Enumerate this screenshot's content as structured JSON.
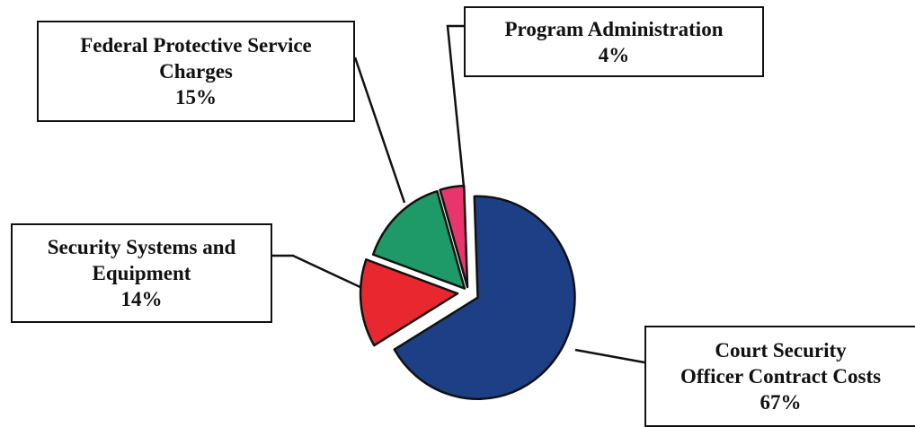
{
  "chart_data": {
    "type": "pie",
    "title": "",
    "slices": [
      {
        "label": "Court Security Officer Contract Costs",
        "value": 67,
        "value_label": "67%",
        "color": "#1d3f86"
      },
      {
        "label": "Security Systems and Equipment",
        "value": 14,
        "value_label": "14%",
        "color": "#e8282e"
      },
      {
        "label": "Federal Protective Service Charges",
        "value": 15,
        "value_label": "15%",
        "color": "#1e9968"
      },
      {
        "label": "Program Administration",
        "value": 4,
        "value_label": "4%",
        "color": "#e8356d"
      }
    ],
    "exploded": true,
    "label_style": "callout-boxes"
  },
  "callouts": {
    "fps": {
      "line1": "Federal Protective Service",
      "line2": "Charges",
      "pct": "15%"
    },
    "pa": {
      "line1": "Program Administration",
      "pct": "4%"
    },
    "ss": {
      "line1": "Security Systems and",
      "line2": "Equipment",
      "pct": "14%"
    },
    "csoc": {
      "line1": "Court Security",
      "line2": "Officer Contract Costs",
      "pct": "67%"
    }
  }
}
